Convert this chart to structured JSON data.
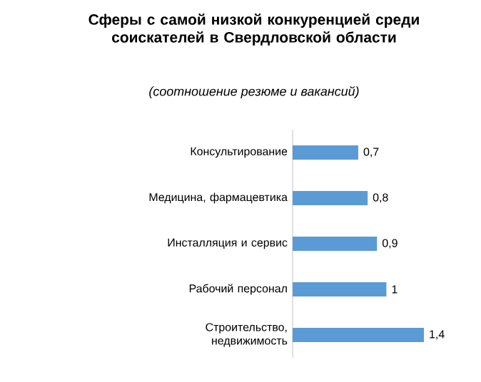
{
  "chart_data": {
    "type": "bar",
    "orientation": "horizontal",
    "title": "Сферы с самой низкой конкуренцией среди соискателей в Свердловской области",
    "subtitle": "(соотношение резюме и вакансий)",
    "categories": [
      "Консультирование",
      "Медицина, фармацевтика",
      "Инсталляция и сервис",
      "Рабочий персонал",
      "Строительство, недвижимость"
    ],
    "values": [
      0.7,
      0.8,
      0.9,
      1,
      1.4
    ],
    "value_labels": [
      "0,7",
      "0,8",
      "0,9",
      "1",
      "1,4"
    ],
    "color": "#5b9bd5"
  }
}
